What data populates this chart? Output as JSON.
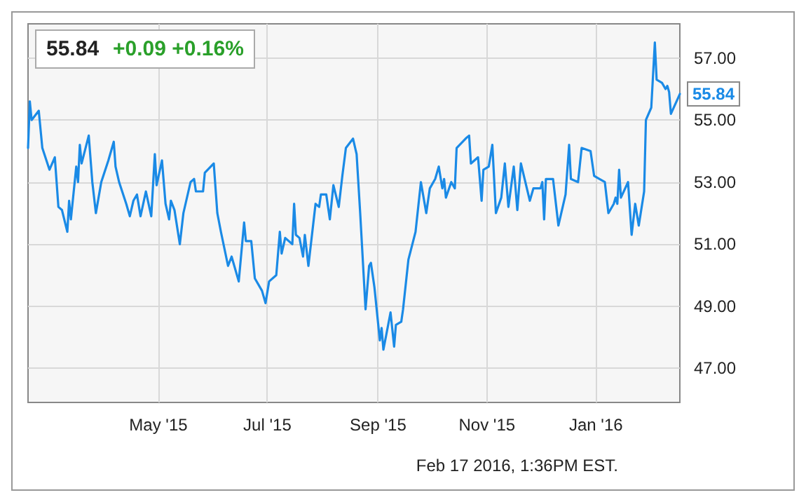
{
  "chart_data": {
    "type": "line",
    "title": "55.84",
    "subtitle": "+0.09 +0.16%",
    "x": [
      "2015-02-17",
      "2015-02-18",
      "2015-02-19",
      "2015-02-23",
      "2015-02-25",
      "2015-03-01",
      "2015-03-04",
      "2015-03-06",
      "2015-03-08",
      "2015-03-11",
      "2015-03-12",
      "2015-03-13",
      "2015-03-16",
      "2015-03-17",
      "2015-03-18",
      "2015-03-19",
      "2015-03-23",
      "2015-03-25",
      "2015-03-27",
      "2015-03-30",
      "2015-04-03",
      "2015-04-06",
      "2015-04-07",
      "2015-04-09",
      "2015-04-13",
      "2015-04-15",
      "2015-04-17",
      "2015-04-19",
      "2015-04-21",
      "2015-04-24",
      "2015-04-27",
      "2015-04-29",
      "2015-04-30",
      "2015-05-03",
      "2015-05-05",
      "2015-05-07",
      "2015-05-08",
      "2015-05-10",
      "2015-05-13",
      "2015-05-15",
      "2015-05-19",
      "2015-05-21",
      "2015-05-22",
      "2015-05-26",
      "2015-05-27",
      "2015-06-01",
      "2015-06-03",
      "2015-06-05",
      "2015-06-09",
      "2015-06-11",
      "2015-06-15",
      "2015-06-18",
      "2015-06-19",
      "2015-06-22",
      "2015-06-24",
      "2015-06-28",
      "2015-06-30",
      "2015-07-02",
      "2015-07-06",
      "2015-07-08",
      "2015-07-09",
      "2015-07-11",
      "2015-07-15",
      "2015-07-16",
      "2015-07-17",
      "2015-07-19",
      "2015-07-21",
      "2015-07-22",
      "2015-07-24",
      "2015-07-28",
      "2015-07-30",
      "2015-07-31",
      "2015-08-03",
      "2015-08-05",
      "2015-08-07",
      "2015-08-10",
      "2015-08-12",
      "2015-08-14",
      "2015-08-18",
      "2015-08-20",
      "2015-08-22",
      "2015-08-25",
      "2015-08-27",
      "2015-08-28",
      "2015-08-30",
      "2015-09-02",
      "2015-09-03",
      "2015-09-04",
      "2015-09-06",
      "2015-09-08",
      "2015-09-10",
      "2015-09-11",
      "2015-09-14",
      "2015-09-15",
      "2015-09-18",
      "2015-09-22",
      "2015-09-25",
      "2015-09-28",
      "2015-09-30",
      "2015-10-03",
      "2015-10-05",
      "2015-10-07",
      "2015-10-08",
      "2015-10-09",
      "2015-10-12",
      "2015-10-14",
      "2015-10-15",
      "2015-10-20",
      "2015-10-22",
      "2015-10-23",
      "2015-10-27",
      "2015-10-29",
      "2015-10-30",
      "2015-11-02",
      "2015-11-04",
      "2015-11-06",
      "2015-11-09",
      "2015-11-11",
      "2015-11-13",
      "2015-11-16",
      "2015-11-18",
      "2015-11-20",
      "2015-11-25",
      "2015-11-27",
      "2015-12-01",
      "2015-12-02",
      "2015-12-03",
      "2015-12-04",
      "2015-12-08",
      "2015-12-09",
      "2015-12-11",
      "2015-12-15",
      "2015-12-17",
      "2015-12-18",
      "2015-12-22",
      "2015-12-24",
      "2015-12-29",
      "2015-12-31",
      "2016-01-06",
      "2016-01-08",
      "2016-01-11",
      "2016-01-12",
      "2016-01-13",
      "2016-01-14",
      "2016-01-15",
      "2016-01-19",
      "2016-01-21",
      "2016-01-23",
      "2016-01-25",
      "2016-01-28",
      "2016-01-29",
      "2016-02-01",
      "2016-02-03",
      "2016-02-04",
      "2016-02-07",
      "2016-02-09",
      "2016-02-10",
      "2016-02-11",
      "2016-02-12",
      "2016-02-17"
    ],
    "series": [
      {
        "color": "#1a8ae6",
        "values": [
          54.1,
          55.6,
          55.0,
          55.3,
          54.1,
          53.4,
          53.8,
          52.2,
          52.1,
          51.4,
          52.4,
          51.8,
          53.5,
          53.0,
          54.2,
          53.6,
          54.5,
          53.0,
          52.0,
          53.0,
          53.7,
          54.3,
          53.5,
          53.0,
          52.3,
          51.9,
          52.4,
          52.6,
          51.9,
          52.7,
          51.9,
          53.9,
          52.9,
          53.7,
          52.3,
          51.8,
          52.4,
          52.1,
          51.0,
          52.0,
          53.0,
          53.1,
          52.7,
          52.7,
          53.3,
          53.6,
          52.0,
          51.4,
          50.3,
          50.6,
          49.8,
          51.7,
          51.1,
          51.1,
          49.9,
          49.5,
          49.1,
          49.8,
          50.0,
          51.4,
          50.7,
          51.2,
          51.0,
          52.3,
          51.3,
          51.2,
          50.6,
          51.3,
          50.3,
          52.3,
          52.2,
          52.6,
          52.6,
          51.8,
          52.9,
          52.2,
          53.2,
          54.1,
          54.4,
          53.9,
          52.0,
          48.9,
          50.3,
          50.4,
          49.6,
          47.9,
          48.3,
          47.6,
          48.2,
          48.8,
          47.7,
          48.4,
          48.5,
          48.9,
          50.5,
          51.4,
          53.0,
          52.0,
          52.8,
          53.1,
          53.5,
          52.8,
          53.1,
          52.5,
          53.0,
          52.8,
          54.1,
          54.4,
          54.5,
          53.6,
          53.8,
          52.4,
          53.4,
          53.5,
          54.2,
          52.0,
          52.5,
          53.6,
          52.2,
          53.5,
          52.1,
          53.6,
          52.4,
          52.8,
          52.8,
          53.0,
          51.8,
          53.1,
          53.1,
          52.6,
          51.6,
          52.6,
          54.2,
          53.1,
          53.0,
          54.1,
          54.0,
          53.2,
          53.0,
          52.0,
          52.3,
          52.5,
          52.3,
          53.4,
          52.5,
          53.0,
          51.3,
          52.3,
          51.6,
          52.7,
          55.0,
          55.4,
          57.5,
          56.3,
          56.2,
          56.0,
          56.1,
          55.9,
          55.2,
          55.84
        ],
        "value_labels": [
          null,
          null,
          null,
          null,
          null,
          null,
          null,
          null,
          null,
          null,
          null,
          null,
          null,
          null,
          null,
          null,
          null,
          null,
          null,
          null,
          null,
          null,
          null,
          null,
          null,
          null,
          null,
          null,
          null,
          null,
          null,
          null,
          null,
          null,
          null,
          null,
          null,
          null,
          null,
          null,
          null,
          null,
          null,
          null,
          null,
          null,
          null,
          null,
          null,
          null,
          null,
          null,
          null,
          null,
          null,
          null,
          null,
          null,
          null,
          null,
          null,
          null,
          null,
          null,
          null,
          null,
          null,
          null,
          null,
          null,
          null,
          null,
          null,
          null,
          null,
          null,
          null,
          null,
          null,
          null,
          null,
          null,
          null,
          null,
          null,
          null,
          null,
          null,
          null,
          null,
          null,
          null,
          null,
          null,
          null,
          null,
          null,
          null,
          null,
          null,
          null,
          null,
          null,
          null,
          null,
          null,
          null,
          null,
          null,
          null,
          null,
          null,
          null,
          null,
          null,
          null,
          null,
          null,
          null,
          null,
          null,
          null,
          null,
          null,
          null,
          null,
          null,
          null,
          null,
          null,
          null,
          null,
          null,
          null,
          null,
          null,
          null,
          null,
          null,
          null,
          null,
          null,
          null,
          null,
          null,
          null,
          null,
          null,
          null,
          null,
          null,
          null,
          null,
          null,
          null,
          null,
          null,
          null,
          null,
          "55.84"
        ]
      }
    ],
    "xlim": [
      "2015-02-17",
      "2016-02-17"
    ],
    "xticks": [
      {
        "value": "2015-05-01",
        "label": "May '15"
      },
      {
        "value": "2015-07-01",
        "label": "Jul '15"
      },
      {
        "value": "2015-09-01",
        "label": "Sep '15"
      },
      {
        "value": "2015-11-01",
        "label": "Nov '15"
      },
      {
        "value": "2016-01-01",
        "label": "Jan '16"
      }
    ],
    "ylim": [
      45.9,
      58.1
    ],
    "yticks": [
      {
        "value": 47,
        "label": "47.00"
      },
      {
        "value": 49,
        "label": "49.00"
      },
      {
        "value": 51,
        "label": "51.00"
      },
      {
        "value": 53,
        "label": "53.00"
      },
      {
        "value": 55,
        "label": "55.00"
      },
      {
        "value": 57,
        "label": "57.00"
      }
    ],
    "grid": true,
    "marker": "none",
    "line_style": "solid",
    "annotations": [
      "Feb 17 2016, 1:36PM EST."
    ]
  }
}
